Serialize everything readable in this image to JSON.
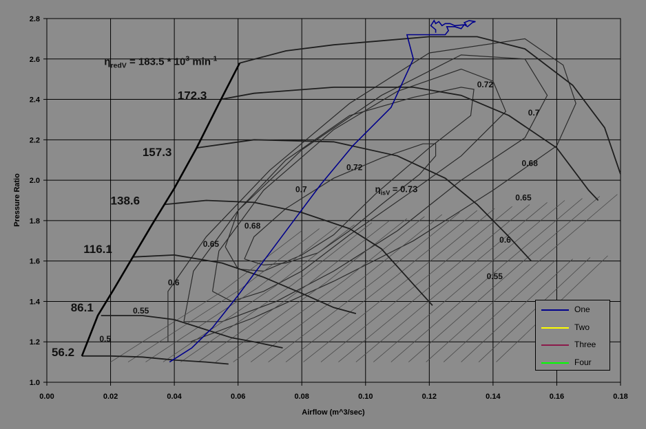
{
  "chart_data": {
    "type": "line",
    "title": "",
    "xlabel": "Airflow (m^3/sec)",
    "ylabel": "Pressure Ratio",
    "xlim": [
      0,
      0.18
    ],
    "ylim": [
      1.0,
      2.8
    ],
    "x_ticks": [
      "0.00",
      "0.02",
      "0.04",
      "0.06",
      "0.08",
      "0.10",
      "0.12",
      "0.14",
      "0.16",
      "0.18"
    ],
    "y_ticks": [
      "1.0",
      "1.2",
      "1.4",
      "1.6",
      "1.8",
      "2.0",
      "2.2",
      "2.4",
      "2.6",
      "2.8"
    ],
    "grid": true,
    "legend_position": "bottom-right",
    "series": [
      {
        "name": "One",
        "color": "#00008b",
        "points": [
          [
            0.0385,
            1.1
          ],
          [
            0.0455,
            1.17
          ],
          [
            0.052,
            1.27
          ],
          [
            0.06,
            1.43
          ],
          [
            0.068,
            1.6
          ],
          [
            0.077,
            1.79
          ],
          [
            0.086,
            1.98
          ],
          [
            0.096,
            2.17
          ],
          [
            0.108,
            2.36
          ],
          [
            0.115,
            2.6
          ],
          [
            0.113,
            2.72
          ],
          [
            0.125,
            2.72
          ],
          [
            0.126,
            2.74
          ],
          [
            0.1255,
            2.76
          ],
          [
            0.128,
            2.76
          ],
          [
            0.13,
            2.75
          ],
          [
            0.131,
            2.77
          ],
          [
            0.132,
            2.76
          ],
          [
            0.1335,
            2.78
          ],
          [
            0.1345,
            2.785
          ],
          [
            0.1325,
            2.79
          ],
          [
            0.131,
            2.78
          ],
          [
            0.1315,
            2.77
          ],
          [
            0.128,
            2.765
          ],
          [
            0.1265,
            2.775
          ],
          [
            0.125,
            2.775
          ],
          [
            0.124,
            2.765
          ],
          [
            0.123,
            2.785
          ],
          [
            0.122,
            2.775
          ],
          [
            0.1215,
            2.79
          ],
          [
            0.1205,
            2.765
          ],
          [
            0.122,
            2.745
          ],
          [
            0.122,
            2.73
          ]
        ]
      },
      {
        "name": "Two",
        "color": "#ffff00",
        "points": []
      },
      {
        "name": "Three",
        "color": "#8b1a4a",
        "points": []
      },
      {
        "name": "Four",
        "color": "#00ff00",
        "points": []
      }
    ],
    "map_overlay": {
      "speed_labels": [
        {
          "text": "56.2",
          "x": 0.0015,
          "y": 1.13
        },
        {
          "text": "86.1",
          "x": 0.0075,
          "y": 1.35
        },
        {
          "text": "116.1",
          "x": 0.0115,
          "y": 1.64
        },
        {
          "text": "138.6",
          "x": 0.02,
          "y": 1.88
        },
        {
          "text": "157.3",
          "x": 0.03,
          "y": 2.12
        },
        {
          "text": "172.3",
          "x": 0.041,
          "y": 2.4
        }
      ],
      "speed_formula": {
        "prefix": "η",
        "sub": "redV",
        "mid": " = 183.5 * 10",
        "sup": "3",
        "suffix": " min",
        "sup2": "-1",
        "x": 0.018,
        "y": 2.57
      },
      "eff_labels": [
        {
          "text": "0.5",
          "x": 0.0165,
          "y": 1.2
        },
        {
          "text": "0.55",
          "x": 0.027,
          "y": 1.34
        },
        {
          "text": "0.6",
          "x": 0.038,
          "y": 1.48
        },
        {
          "text": "0.65",
          "x": 0.049,
          "y": 1.67
        },
        {
          "text": "0.68",
          "x": 0.062,
          "y": 1.76
        },
        {
          "text": "0.7",
          "x": 0.078,
          "y": 1.94
        },
        {
          "text": "0.72",
          "x": 0.094,
          "y": 2.05
        },
        {
          "text": "0.72",
          "x": 0.135,
          "y": 2.46
        },
        {
          "text": "0.7",
          "x": 0.151,
          "y": 2.32
        },
        {
          "text": "0.68",
          "x": 0.149,
          "y": 2.07
        },
        {
          "text": "0.65",
          "x": 0.147,
          "y": 1.9
        },
        {
          "text": "0.6",
          "x": 0.142,
          "y": 1.69
        },
        {
          "text": "0.55",
          "x": 0.138,
          "y": 1.51
        }
      ],
      "peak_eff_label": {
        "prefix": "η",
        "sub": "isV",
        "value": " = 0.73",
        "x": 0.103,
        "y": 1.94
      },
      "surge_line": [
        [
          0.011,
          1.13
        ],
        [
          0.016,
          1.33
        ],
        [
          0.021,
          1.46
        ],
        [
          0.027,
          1.62
        ],
        [
          0.033,
          1.78
        ],
        [
          0.04,
          1.96
        ],
        [
          0.047,
          2.16
        ],
        [
          0.054,
          2.38
        ],
        [
          0.0605,
          2.58
        ]
      ],
      "speed_lines": [
        [
          [
            0.011,
            1.13
          ],
          [
            0.02,
            1.13
          ],
          [
            0.03,
            1.125
          ],
          [
            0.04,
            1.11
          ],
          [
            0.05,
            1.1
          ],
          [
            0.057,
            1.09
          ]
        ],
        [
          [
            0.017,
            1.33
          ],
          [
            0.03,
            1.33
          ],
          [
            0.04,
            1.31
          ],
          [
            0.05,
            1.26
          ],
          [
            0.058,
            1.22
          ],
          [
            0.065,
            1.2
          ],
          [
            0.074,
            1.17
          ]
        ],
        [
          [
            0.027,
            1.62
          ],
          [
            0.04,
            1.63
          ],
          [
            0.055,
            1.59
          ],
          [
            0.068,
            1.52
          ],
          [
            0.08,
            1.44
          ],
          [
            0.09,
            1.37
          ],
          [
            0.097,
            1.34
          ]
        ],
        [
          [
            0.037,
            1.88
          ],
          [
            0.05,
            1.9
          ],
          [
            0.065,
            1.89
          ],
          [
            0.08,
            1.84
          ],
          [
            0.095,
            1.76
          ],
          [
            0.105,
            1.66
          ],
          [
            0.113,
            1.52
          ],
          [
            0.121,
            1.38
          ]
        ],
        [
          [
            0.047,
            2.16
          ],
          [
            0.065,
            2.2
          ],
          [
            0.09,
            2.19
          ],
          [
            0.11,
            2.12
          ],
          [
            0.125,
            2.01
          ],
          [
            0.135,
            1.88
          ],
          [
            0.145,
            1.72
          ],
          [
            0.152,
            1.6
          ]
        ],
        [
          [
            0.0545,
            2.4
          ],
          [
            0.065,
            2.43
          ],
          [
            0.09,
            2.46
          ],
          [
            0.115,
            2.46
          ],
          [
            0.13,
            2.42
          ],
          [
            0.145,
            2.32
          ],
          [
            0.16,
            2.16
          ],
          [
            0.17,
            1.95
          ],
          [
            0.173,
            1.9
          ]
        ],
        [
          [
            0.0605,
            2.58
          ],
          [
            0.075,
            2.64
          ],
          [
            0.09,
            2.67
          ],
          [
            0.105,
            2.69
          ],
          [
            0.12,
            2.71
          ],
          [
            0.135,
            2.71
          ],
          [
            0.15,
            2.65
          ],
          [
            0.165,
            2.47
          ],
          [
            0.175,
            2.26
          ],
          [
            0.18,
            2.03
          ]
        ]
      ],
      "eff_islands": [
        [
          [
            0.062,
            1.61
          ],
          [
            0.065,
            1.72
          ],
          [
            0.075,
            1.86
          ],
          [
            0.09,
            2.01
          ],
          [
            0.105,
            2.11
          ],
          [
            0.118,
            2.18
          ],
          [
            0.122,
            2.18
          ],
          [
            0.122,
            2.12
          ],
          [
            0.117,
            2.03
          ],
          [
            0.105,
            1.88
          ],
          [
            0.095,
            1.75
          ],
          [
            0.085,
            1.64
          ],
          [
            0.075,
            1.59
          ],
          [
            0.068,
            1.58
          ],
          [
            0.062,
            1.61
          ]
        ],
        [
          [
            0.056,
            1.67
          ],
          [
            0.06,
            1.85
          ],
          [
            0.075,
            2.1
          ],
          [
            0.095,
            2.32
          ],
          [
            0.115,
            2.41
          ],
          [
            0.13,
            2.46
          ],
          [
            0.134,
            2.45
          ],
          [
            0.133,
            2.32
          ],
          [
            0.12,
            2.16
          ],
          [
            0.103,
            1.93
          ],
          [
            0.09,
            1.73
          ],
          [
            0.08,
            1.63
          ],
          [
            0.068,
            1.55
          ],
          [
            0.06,
            1.56
          ],
          [
            0.056,
            1.67
          ]
        ],
        [
          [
            0.052,
            1.45
          ],
          [
            0.054,
            1.65
          ],
          [
            0.068,
            1.95
          ],
          [
            0.09,
            2.25
          ],
          [
            0.11,
            2.44
          ],
          [
            0.13,
            2.55
          ],
          [
            0.14,
            2.49
          ],
          [
            0.144,
            2.34
          ],
          [
            0.13,
            2.12
          ],
          [
            0.115,
            1.95
          ],
          [
            0.095,
            1.73
          ],
          [
            0.08,
            1.55
          ],
          [
            0.068,
            1.45
          ],
          [
            0.058,
            1.4
          ],
          [
            0.052,
            1.45
          ]
        ],
        [
          [
            0.043,
            1.3
          ],
          [
            0.046,
            1.55
          ],
          [
            0.06,
            1.85
          ],
          [
            0.08,
            2.15
          ],
          [
            0.105,
            2.42
          ],
          [
            0.13,
            2.62
          ],
          [
            0.15,
            2.6
          ],
          [
            0.157,
            2.42
          ],
          [
            0.15,
            2.21
          ],
          [
            0.13,
            2.0
          ],
          [
            0.11,
            1.75
          ],
          [
            0.09,
            1.55
          ],
          [
            0.072,
            1.4
          ],
          [
            0.055,
            1.3
          ],
          [
            0.043,
            1.3
          ]
        ],
        [
          [
            0.038,
            1.2
          ],
          [
            0.038,
            1.45
          ],
          [
            0.05,
            1.72
          ],
          [
            0.07,
            2.05
          ],
          [
            0.095,
            2.38
          ],
          [
            0.12,
            2.63
          ],
          [
            0.15,
            2.7
          ],
          [
            0.162,
            2.57
          ],
          [
            0.166,
            2.38
          ],
          [
            0.16,
            2.17
          ],
          [
            0.14,
            1.95
          ],
          [
            0.115,
            1.7
          ],
          [
            0.09,
            1.5
          ],
          [
            0.065,
            1.32
          ],
          [
            0.045,
            1.2
          ],
          [
            0.038,
            1.2
          ]
        ]
      ]
    }
  }
}
